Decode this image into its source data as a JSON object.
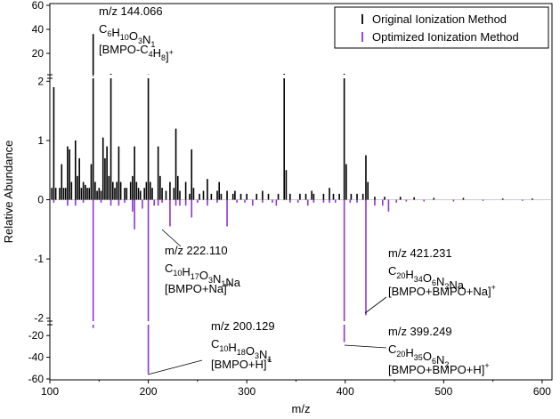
{
  "chart_data": {
    "type": "bar",
    "xlabel": "m/z",
    "ylabel": "Relative Abundance",
    "xlim": [
      100,
      610
    ],
    "y_segments": {
      "top": {
        "range": [
          2.2,
          60
        ],
        "ticks": [
          20,
          40,
          60
        ]
      },
      "middle": {
        "range": [
          -2.05,
          2.05
        ],
        "ticks": [
          -2,
          -1,
          0,
          1,
          2
        ]
      },
      "bottom": {
        "range": [
          -60,
          -10
        ],
        "ticks": [
          -20,
          -40,
          -60
        ]
      }
    },
    "x_ticks": [
      100,
      200,
      300,
      400,
      500,
      600
    ],
    "legend": {
      "position": "top-right",
      "entries": [
        "Original Ionization Method",
        "Optimized Ionization Method"
      ]
    },
    "series": [
      {
        "name": "Original Ionization Method",
        "color": "#000000",
        "direction": "up",
        "peaks": [
          {
            "mz": 102,
            "v": 0.2
          },
          {
            "mz": 104,
            "v": 1.9
          },
          {
            "mz": 106,
            "v": 0.2
          },
          {
            "mz": 110,
            "v": 0.2
          },
          {
            "mz": 112,
            "v": 0.6
          },
          {
            "mz": 114,
            "v": 0.2
          },
          {
            "mz": 116,
            "v": 0.2
          },
          {
            "mz": 118,
            "v": 0.9
          },
          {
            "mz": 120,
            "v": 0.85
          },
          {
            "mz": 122,
            "v": 0.3
          },
          {
            "mz": 126,
            "v": 1.0
          },
          {
            "mz": 128,
            "v": 0.4
          },
          {
            "mz": 130,
            "v": 0.7
          },
          {
            "mz": 132,
            "v": 0.2
          },
          {
            "mz": 134,
            "v": 0.3
          },
          {
            "mz": 136,
            "v": 0.25
          },
          {
            "mz": 138,
            "v": 0.2
          },
          {
            "mz": 140,
            "v": 0.2
          },
          {
            "mz": 142,
            "v": 0.6
          },
          {
            "mz": 144,
            "v": 36
          },
          {
            "mz": 146,
            "v": 0.3
          },
          {
            "mz": 148,
            "v": 0.15
          },
          {
            "mz": 150,
            "v": 0.2
          },
          {
            "mz": 152,
            "v": 0.15
          },
          {
            "mz": 154,
            "v": 1.05
          },
          {
            "mz": 156,
            "v": 0.7
          },
          {
            "mz": 158,
            "v": 0.9
          },
          {
            "mz": 160,
            "v": 0.4
          },
          {
            "mz": 162,
            "v": 3.0
          },
          {
            "mz": 164,
            "v": 0.3
          },
          {
            "mz": 166,
            "v": 0.2
          },
          {
            "mz": 168,
            "v": 0.3
          },
          {
            "mz": 170,
            "v": 0.9
          },
          {
            "mz": 172,
            "v": 0.3
          },
          {
            "mz": 176,
            "v": 0.2
          },
          {
            "mz": 178,
            "v": 0.2
          },
          {
            "mz": 182,
            "v": 0.3
          },
          {
            "mz": 184,
            "v": 0.4
          },
          {
            "mz": 186,
            "v": 0.9
          },
          {
            "mz": 188,
            "v": 0.3
          },
          {
            "mz": 190,
            "v": 0.2
          },
          {
            "mz": 192,
            "v": 0.15
          },
          {
            "mz": 196,
            "v": 0.2
          },
          {
            "mz": 198,
            "v": 0.3
          },
          {
            "mz": 200,
            "v": 2.5
          },
          {
            "mz": 202,
            "v": 0.3
          },
          {
            "mz": 204,
            "v": 0.2
          },
          {
            "mz": 210,
            "v": 0.9
          },
          {
            "mz": 212,
            "v": 0.4
          },
          {
            "mz": 214,
            "v": 0.2
          },
          {
            "mz": 218,
            "v": 0.15
          },
          {
            "mz": 222,
            "v": 0.3
          },
          {
            "mz": 226,
            "v": 0.2
          },
          {
            "mz": 228,
            "v": 1.2
          },
          {
            "mz": 230,
            "v": 0.4
          },
          {
            "mz": 232,
            "v": 0.15
          },
          {
            "mz": 238,
            "v": 0.3
          },
          {
            "mz": 242,
            "v": 0.1
          },
          {
            "mz": 244,
            "v": 0.85
          },
          {
            "mz": 246,
            "v": 0.2
          },
          {
            "mz": 252,
            "v": 0.1
          },
          {
            "mz": 256,
            "v": 0.15
          },
          {
            "mz": 260,
            "v": 0.35
          },
          {
            "mz": 264,
            "v": 0.1
          },
          {
            "mz": 270,
            "v": 0.15
          },
          {
            "mz": 272,
            "v": 0.3
          },
          {
            "mz": 274,
            "v": 0.1
          },
          {
            "mz": 280,
            "v": 0.15
          },
          {
            "mz": 286,
            "v": 0.1
          },
          {
            "mz": 288,
            "v": 0.15
          },
          {
            "mz": 294,
            "v": 0.1
          },
          {
            "mz": 300,
            "v": 0.1
          },
          {
            "mz": 310,
            "v": 0.1
          },
          {
            "mz": 316,
            "v": 0.15
          },
          {
            "mz": 322,
            "v": 0.1
          },
          {
            "mz": 332,
            "v": 0.1
          },
          {
            "mz": 338,
            "v": 3.0
          },
          {
            "mz": 340,
            "v": 0.5
          },
          {
            "mz": 344,
            "v": 0.1
          },
          {
            "mz": 354,
            "v": 0.1
          },
          {
            "mz": 360,
            "v": 0.1
          },
          {
            "mz": 366,
            "v": 0.15
          },
          {
            "mz": 368,
            "v": 0.1
          },
          {
            "mz": 378,
            "v": 0.1
          },
          {
            "mz": 384,
            "v": 0.2
          },
          {
            "mz": 388,
            "v": 0.1
          },
          {
            "mz": 394,
            "v": 0.1
          },
          {
            "mz": 399,
            "v": 3.0
          },
          {
            "mz": 401,
            "v": 0.6
          },
          {
            "mz": 406,
            "v": 0.1
          },
          {
            "mz": 412,
            "v": 0.1
          },
          {
            "mz": 418,
            "v": 0.1
          },
          {
            "mz": 421,
            "v": 0.75
          },
          {
            "mz": 423,
            "v": 0.3
          },
          {
            "mz": 430,
            "v": 0.05
          },
          {
            "mz": 440,
            "v": 0.05
          },
          {
            "mz": 456,
            "v": 0.05
          },
          {
            "mz": 470,
            "v": 0.04
          },
          {
            "mz": 490,
            "v": 0.03
          },
          {
            "mz": 520,
            "v": 0.03
          },
          {
            "mz": 560,
            "v": 0.02
          },
          {
            "mz": 590,
            "v": 0.02
          }
        ]
      },
      {
        "name": "Optimized Ionization Method",
        "color": "#8a36d8",
        "direction": "down",
        "peaks": [
          {
            "mz": 104,
            "v": 0.05
          },
          {
            "mz": 118,
            "v": 0.1
          },
          {
            "mz": 126,
            "v": 0.1
          },
          {
            "mz": 134,
            "v": 0.05
          },
          {
            "mz": 144,
            "v": 13
          },
          {
            "mz": 152,
            "v": 0.05
          },
          {
            "mz": 162,
            "v": 0.1
          },
          {
            "mz": 170,
            "v": 0.1
          },
          {
            "mz": 176,
            "v": 0.05
          },
          {
            "mz": 184,
            "v": 0.2
          },
          {
            "mz": 186,
            "v": 0.5
          },
          {
            "mz": 194,
            "v": 0.15
          },
          {
            "mz": 200,
            "v": 55
          },
          {
            "mz": 206,
            "v": 0.1
          },
          {
            "mz": 210,
            "v": 0.1
          },
          {
            "mz": 214,
            "v": 0.05
          },
          {
            "mz": 222,
            "v": 0.45
          },
          {
            "mz": 228,
            "v": 0.1
          },
          {
            "mz": 232,
            "v": 0.1
          },
          {
            "mz": 238,
            "v": 0.1
          },
          {
            "mz": 244,
            "v": 0.3
          },
          {
            "mz": 250,
            "v": 0.05
          },
          {
            "mz": 260,
            "v": 0.1
          },
          {
            "mz": 270,
            "v": 0.05
          },
          {
            "mz": 280,
            "v": 0.45
          },
          {
            "mz": 290,
            "v": 0.05
          },
          {
            "mz": 298,
            "v": 0.05
          },
          {
            "mz": 306,
            "v": 0.1
          },
          {
            "mz": 316,
            "v": 0.05
          },
          {
            "mz": 326,
            "v": 0.05
          },
          {
            "mz": 330,
            "v": 0.1
          },
          {
            "mz": 344,
            "v": 0.05
          },
          {
            "mz": 352,
            "v": 0.05
          },
          {
            "mz": 362,
            "v": 0.1
          },
          {
            "mz": 368,
            "v": 0.05
          },
          {
            "mz": 378,
            "v": 0.05
          },
          {
            "mz": 384,
            "v": 0.05
          },
          {
            "mz": 390,
            "v": 0.05
          },
          {
            "mz": 399,
            "v": 26
          },
          {
            "mz": 405,
            "v": 0.05
          },
          {
            "mz": 412,
            "v": 0.05
          },
          {
            "mz": 421,
            "v": 1.95
          },
          {
            "mz": 430,
            "v": 0.1
          },
          {
            "mz": 438,
            "v": 0.1
          },
          {
            "mz": 444,
            "v": 0.2
          },
          {
            "mz": 452,
            "v": 0.05
          },
          {
            "mz": 462,
            "v": 0.03
          },
          {
            "mz": 480,
            "v": 0.03
          },
          {
            "mz": 510,
            "v": 0.03
          },
          {
            "mz": 540,
            "v": 0.02
          },
          {
            "mz": 580,
            "v": 0.02
          }
        ]
      }
    ],
    "annotations": [
      {
        "id": "mz144",
        "mz": 144,
        "direction": "up",
        "leader": "vertical",
        "mass": "m/z 144.066",
        "formula": [
          [
            "C",
            "6"
          ],
          [
            "H",
            "10"
          ],
          [
            "O",
            "3"
          ],
          [
            "N",
            "1"
          ]
        ],
        "ion": "[BMPO-C4H8]",
        "charge": "+"
      },
      {
        "id": "mz222",
        "mz": 186,
        "direction": "down",
        "leader": "diagonal",
        "mass": "m/z 222.110",
        "formula": [
          [
            "C",
            "10"
          ],
          [
            "H",
            "17"
          ],
          [
            "O",
            "3"
          ],
          [
            "N",
            "1"
          ],
          [
            "Na",
            ""
          ]
        ],
        "ion": "[BMPO+Na]",
        "charge": "+"
      },
      {
        "id": "mz200",
        "mz": 200,
        "direction": "down",
        "leader": "diagonal",
        "mass": "m/z 200.129",
        "formula": [
          [
            "C",
            "10"
          ],
          [
            "H",
            "18"
          ],
          [
            "O",
            "3"
          ],
          [
            "N",
            "1"
          ]
        ],
        "ion": "[BMPO+H]",
        "charge": "+"
      },
      {
        "id": "mz421",
        "mz": 421,
        "direction": "down",
        "leader": "horizontal",
        "mass": "m/z 421.231",
        "formula": [
          [
            "C",
            "20"
          ],
          [
            "H",
            "34"
          ],
          [
            "O",
            "6"
          ],
          [
            "N",
            "2"
          ],
          [
            "Na",
            ""
          ]
        ],
        "ion": "[BMPO+BMPO+Na]",
        "charge": "+"
      },
      {
        "id": "mz399",
        "mz": 399,
        "direction": "down",
        "leader": "horizontal",
        "mass": "m/z 399.249",
        "formula": [
          [
            "C",
            "20"
          ],
          [
            "H",
            "35"
          ],
          [
            "O",
            "6"
          ],
          [
            "N",
            "2"
          ]
        ],
        "ion": "[BMPO+BMPO+H]",
        "charge": "+"
      }
    ]
  }
}
